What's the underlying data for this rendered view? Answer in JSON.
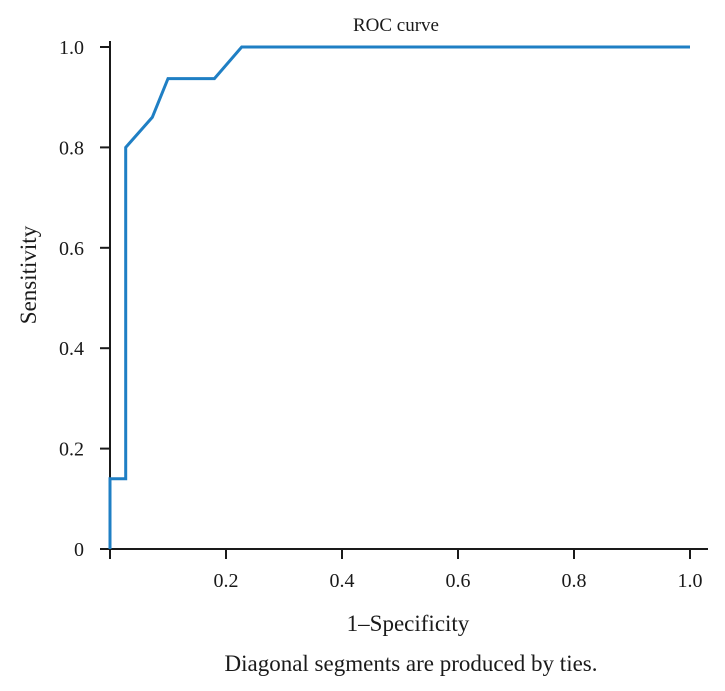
{
  "chart_data": {
    "type": "line",
    "title": "ROC curve",
    "xlabel": "1–Specificity",
    "ylabel": "Sensitivity",
    "footnote": "Diagonal segments are produced by ties.",
    "xlim": [
      0,
      1.0
    ],
    "ylim": [
      0,
      1.0
    ],
    "xticks": [
      {
        "value": 0,
        "label": ""
      },
      {
        "value": 0.2,
        "label": "0.2"
      },
      {
        "value": 0.4,
        "label": "0.4"
      },
      {
        "value": 0.6,
        "label": "0.6"
      },
      {
        "value": 0.8,
        "label": "0.8"
      },
      {
        "value": 1.0,
        "label": "1.0"
      }
    ],
    "yticks": [
      {
        "value": 0,
        "label": "0"
      },
      {
        "value": 0.2,
        "label": "0.2"
      },
      {
        "value": 0.4,
        "label": "0.4"
      },
      {
        "value": 0.6,
        "label": "0.6"
      },
      {
        "value": 0.8,
        "label": "0.8"
      },
      {
        "value": 1.0,
        "label": "1.0"
      }
    ],
    "grid": false,
    "line_color": "#1f7fc4",
    "series": [
      {
        "x": [
          0,
          0,
          0.027,
          0.027,
          0.073,
          0.1,
          0.18,
          0.227,
          1.0
        ],
        "y": [
          0,
          0.14,
          0.14,
          0.8,
          0.86,
          0.937,
          0.937,
          1.0,
          1.0
        ]
      }
    ]
  }
}
